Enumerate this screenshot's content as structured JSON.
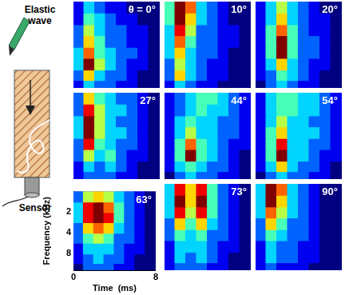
{
  "schematic": {
    "wave_label": [
      "Elastic",
      "wave"
    ],
    "sensor_label": "Sensor"
  },
  "chart_data": [
    {
      "type": "heatmap",
      "title": "θ = 0°",
      "log": "y",
      "xlim": [
        0,
        8
      ],
      "ylim": [
        1,
        14
      ],
      "tick_labels": false,
      "x_bins": [
        0,
        1,
        2,
        3,
        4,
        5,
        6,
        7,
        8
      ],
      "y_bins": [
        1,
        1.4,
        2,
        2.8,
        4,
        5.6,
        8,
        11,
        14
      ],
      "zlim": [
        0,
        9
      ],
      "cells": [
        [
          1,
          3,
          2,
          1,
          1,
          0,
          0,
          0
        ],
        [
          1,
          4,
          3,
          2,
          1,
          1,
          0,
          0
        ],
        [
          2,
          5,
          3,
          2,
          2,
          1,
          1,
          0
        ],
        [
          2,
          6,
          4,
          2,
          2,
          1,
          1,
          0
        ],
        [
          3,
          7,
          4,
          3,
          2,
          2,
          1,
          0
        ],
        [
          3,
          9,
          5,
          3,
          2,
          1,
          1,
          0
        ],
        [
          2,
          6,
          3,
          2,
          2,
          1,
          0,
          0
        ],
        [
          1,
          3,
          2,
          2,
          1,
          1,
          0,
          0
        ]
      ]
    },
    {
      "type": "heatmap",
      "title": "10°",
      "log": "y",
      "xlim": [
        0,
        8
      ],
      "ylim": [
        1,
        14
      ],
      "tick_labels": false,
      "x_bins": [
        0,
        1,
        2,
        3,
        4,
        5,
        6,
        7,
        8
      ],
      "y_bins": [
        1,
        1.4,
        2,
        2.8,
        4,
        5.6,
        8,
        11,
        14
      ],
      "zlim": [
        0,
        9
      ],
      "cells": [
        [
          4,
          9,
          7,
          3,
          2,
          1,
          0,
          0
        ],
        [
          4,
          9,
          6,
          3,
          2,
          1,
          0,
          0
        ],
        [
          3,
          8,
          5,
          2,
          2,
          1,
          1,
          0
        ],
        [
          3,
          7,
          4,
          2,
          2,
          1,
          1,
          0
        ],
        [
          3,
          6,
          3,
          2,
          2,
          1,
          0,
          0
        ],
        [
          2,
          5,
          3,
          2,
          1,
          1,
          0,
          0
        ],
        [
          2,
          6,
          3,
          2,
          1,
          1,
          0,
          0
        ],
        [
          1,
          3,
          2,
          1,
          1,
          0,
          0,
          0
        ]
      ]
    },
    {
      "type": "heatmap",
      "title": "20°",
      "log": "y",
      "xlim": [
        0,
        8
      ],
      "ylim": [
        1,
        14
      ],
      "tick_labels": false,
      "x_bins": [
        0,
        1,
        2,
        3,
        4,
        5,
        6,
        7,
        8
      ],
      "y_bins": [
        1,
        1.4,
        2,
        2.8,
        4,
        5.6,
        8,
        11,
        14
      ],
      "zlim": [
        0,
        9
      ],
      "cells": [
        [
          1,
          3,
          5,
          3,
          2,
          1,
          0,
          0
        ],
        [
          1,
          3,
          6,
          3,
          2,
          1,
          1,
          0
        ],
        [
          1,
          4,
          7,
          4,
          2,
          1,
          1,
          0
        ],
        [
          1,
          4,
          9,
          4,
          2,
          2,
          1,
          0
        ],
        [
          1,
          4,
          9,
          4,
          2,
          2,
          1,
          0
        ],
        [
          1,
          3,
          6,
          3,
          2,
          1,
          1,
          0
        ],
        [
          1,
          2,
          4,
          3,
          2,
          1,
          0,
          0
        ],
        [
          0,
          2,
          3,
          2,
          1,
          1,
          0,
          0
        ]
      ]
    },
    {
      "type": "heatmap",
      "title": "27°",
      "log": "y",
      "xlim": [
        0,
        8
      ],
      "ylim": [
        1,
        14
      ],
      "tick_labels": false,
      "x_bins": [
        0,
        1,
        2,
        3,
        4,
        5,
        6,
        7,
        8
      ],
      "y_bins": [
        1,
        1.4,
        2,
        2.8,
        4,
        5.6,
        8,
        11,
        14
      ],
      "zlim": [
        0,
        9
      ],
      "cells": [
        [
          2,
          6,
          4,
          3,
          2,
          2,
          1,
          0
        ],
        [
          2,
          8,
          5,
          3,
          3,
          2,
          1,
          0
        ],
        [
          3,
          9,
          5,
          3,
          2,
          2,
          1,
          0
        ],
        [
          3,
          9,
          5,
          3,
          3,
          2,
          1,
          0
        ],
        [
          2,
          8,
          4,
          3,
          2,
          2,
          1,
          0
        ],
        [
          2,
          5,
          3,
          4,
          2,
          1,
          1,
          0
        ],
        [
          1,
          3,
          2,
          3,
          2,
          1,
          0,
          0
        ],
        [
          1,
          2,
          2,
          2,
          1,
          1,
          0,
          0
        ]
      ]
    },
    {
      "type": "heatmap",
      "title": "44°",
      "log": "y",
      "xlim": [
        0,
        8
      ],
      "ylim": [
        1,
        14
      ],
      "tick_labels": false,
      "x_bins": [
        0,
        1,
        2,
        3,
        4,
        5,
        6,
        7,
        8
      ],
      "y_bins": [
        1,
        1.4,
        2,
        2.8,
        4,
        5.6,
        8,
        11,
        14
      ],
      "zlim": [
        0,
        9
      ],
      "cells": [
        [
          1,
          2,
          3,
          4,
          4,
          3,
          2,
          1
        ],
        [
          1,
          2,
          3,
          4,
          3,
          3,
          2,
          1
        ],
        [
          1,
          3,
          4,
          3,
          3,
          2,
          2,
          1
        ],
        [
          1,
          3,
          5,
          3,
          3,
          2,
          2,
          1
        ],
        [
          1,
          4,
          7,
          4,
          3,
          2,
          1,
          1
        ],
        [
          1,
          4,
          9,
          4,
          3,
          2,
          1,
          0
        ],
        [
          1,
          3,
          4,
          3,
          2,
          2,
          1,
          0
        ],
        [
          0,
          2,
          3,
          2,
          2,
          1,
          1,
          0
        ]
      ]
    },
    {
      "type": "heatmap",
      "title": "54°",
      "log": "y",
      "xlim": [
        0,
        8
      ],
      "ylim": [
        1,
        14
      ],
      "tick_labels": false,
      "x_bins": [
        0,
        1,
        2,
        3,
        4,
        5,
        6,
        7,
        8
      ],
      "y_bins": [
        1,
        1.4,
        2,
        2.8,
        4,
        5.6,
        8,
        11,
        14
      ],
      "zlim": [
        0,
        9
      ],
      "cells": [
        [
          1,
          3,
          4,
          4,
          3,
          3,
          2,
          1
        ],
        [
          1,
          3,
          4,
          4,
          3,
          3,
          2,
          1
        ],
        [
          1,
          3,
          5,
          3,
          3,
          2,
          2,
          1
        ],
        [
          1,
          4,
          6,
          3,
          3,
          3,
          2,
          1
        ],
        [
          1,
          4,
          8,
          3,
          3,
          2,
          2,
          1
        ],
        [
          1,
          4,
          9,
          3,
          3,
          2,
          1,
          1
        ],
        [
          1,
          3,
          6,
          3,
          2,
          2,
          1,
          0
        ],
        [
          0,
          2,
          3,
          2,
          2,
          1,
          1,
          0
        ]
      ]
    },
    {
      "type": "heatmap",
      "title": "63°",
      "log": "y",
      "xlim": [
        0,
        8
      ],
      "ylim": [
        1,
        14
      ],
      "xlabel": "Time  (ms)",
      "ylabel": "Frequency (kHz)",
      "xticks": [
        0,
        8
      ],
      "yticks": [
        2,
        4,
        8
      ],
      "x_bins": [
        0,
        1,
        2,
        3,
        4,
        5,
        6,
        7,
        8
      ],
      "y_bins": [
        1,
        1.4,
        2,
        2.8,
        4,
        5.6,
        8,
        11,
        14
      ],
      "zlim": [
        0,
        9
      ],
      "cells": [
        [
          2,
          5,
          6,
          5,
          3,
          2,
          1,
          0
        ],
        [
          3,
          8,
          9,
          7,
          4,
          2,
          1,
          0
        ],
        [
          3,
          8,
          9,
          8,
          4,
          2,
          1,
          0
        ],
        [
          2,
          6,
          7,
          6,
          3,
          2,
          1,
          0
        ],
        [
          2,
          4,
          5,
          4,
          2,
          2,
          1,
          0
        ],
        [
          1,
          3,
          3,
          3,
          2,
          1,
          1,
          0
        ],
        [
          1,
          2,
          3,
          2,
          2,
          1,
          0,
          0
        ],
        [
          0,
          2,
          2,
          2,
          1,
          1,
          0,
          0
        ]
      ]
    },
    {
      "type": "heatmap",
      "title": "73°",
      "log": "y",
      "xlim": [
        0,
        8
      ],
      "ylim": [
        1,
        14
      ],
      "tick_labels": false,
      "x_bins": [
        0,
        1,
        2,
        3,
        4,
        5,
        6,
        7,
        8
      ],
      "y_bins": [
        1,
        1.4,
        2,
        2.8,
        4,
        5.6,
        8,
        11,
        14
      ],
      "zlim": [
        0,
        9
      ],
      "cells": [
        [
          3,
          8,
          6,
          8,
          4,
          2,
          1,
          0
        ],
        [
          3,
          9,
          6,
          9,
          4,
          2,
          1,
          0
        ],
        [
          3,
          8,
          5,
          8,
          4,
          2,
          1,
          0
        ],
        [
          2,
          6,
          4,
          6,
          3,
          2,
          1,
          0
        ],
        [
          2,
          4,
          3,
          4,
          2,
          2,
          1,
          0
        ],
        [
          1,
          3,
          3,
          3,
          2,
          1,
          1,
          0
        ],
        [
          1,
          3,
          2,
          3,
          2,
          1,
          0,
          0
        ],
        [
          1,
          2,
          2,
          2,
          1,
          1,
          0,
          0
        ]
      ]
    },
    {
      "type": "heatmap",
      "title": "90°",
      "log": "y",
      "xlim": [
        0,
        8
      ],
      "ylim": [
        1,
        14
      ],
      "tick_labels": false,
      "x_bins": [
        0,
        1,
        2,
        3,
        4,
        5,
        6,
        7,
        8
      ],
      "y_bins": [
        1,
        1.4,
        2,
        2.8,
        4,
        5.6,
        8,
        11,
        14
      ],
      "zlim": [
        0,
        9
      ],
      "cells": [
        [
          3,
          9,
          7,
          3,
          2,
          1,
          0,
          0
        ],
        [
          3,
          9,
          6,
          3,
          2,
          1,
          0,
          0
        ],
        [
          3,
          7,
          5,
          3,
          2,
          1,
          0,
          0
        ],
        [
          2,
          6,
          4,
          2,
          2,
          1,
          0,
          0
        ],
        [
          2,
          4,
          3,
          2,
          2,
          1,
          0,
          0
        ],
        [
          1,
          3,
          2,
          2,
          1,
          1,
          0,
          0
        ],
        [
          1,
          3,
          2,
          2,
          1,
          1,
          0,
          0
        ],
        [
          1,
          2,
          1,
          1,
          1,
          0,
          0,
          0
        ]
      ]
    }
  ]
}
